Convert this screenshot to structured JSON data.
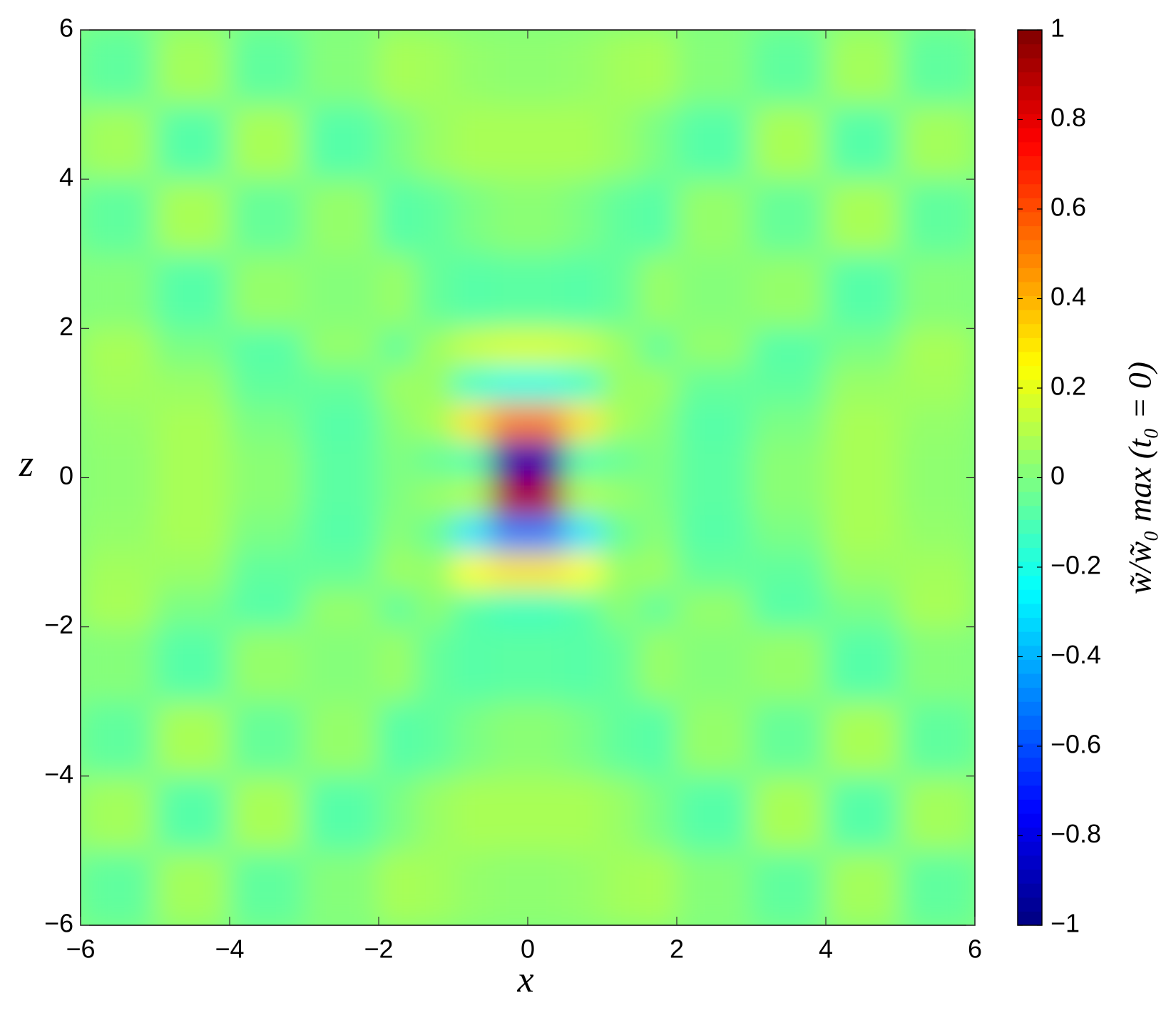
{
  "chart_data": {
    "type": "heatmap",
    "colormap": "jet",
    "x_label": "x",
    "y_label": "z",
    "colorbar_label": "w̃/w̃₀ max (t₀ = 0)",
    "xbins": [
      -6,
      -5,
      -4,
      -3,
      -2,
      -1.5,
      -1,
      -0.5,
      0,
      0.5,
      1,
      1.5,
      2,
      3,
      4,
      5,
      6
    ],
    "ybins": [
      -6,
      -5,
      -4,
      -3,
      -2,
      -1.5,
      -1,
      -0.5,
      0,
      0.5,
      1,
      1.5,
      2,
      3,
      4,
      5,
      6
    ],
    "values": [
      [
        -0.06,
        0.07,
        -0.06,
        0.01,
        0.08,
        0.07,
        0.04,
        0.03,
        0.03,
        0.04,
        0.07,
        0.08,
        0.01,
        -0.06,
        0.07,
        -0.06
      ],
      [
        0.07,
        -0.08,
        0.08,
        -0.08,
        -0.01,
        0.05,
        0.08,
        0.08,
        0.08,
        0.08,
        0.05,
        -0.01,
        -0.08,
        0.08,
        -0.08,
        0.07
      ],
      [
        -0.06,
        0.08,
        -0.05,
        0.04,
        -0.08,
        -0.06,
        -0.01,
        0.02,
        0.02,
        -0.01,
        -0.06,
        -0.08,
        0.04,
        -0.05,
        0.08,
        -0.06
      ],
      [
        0.01,
        -0.08,
        0.04,
        0.01,
        0.05,
        -0.05,
        -0.08,
        -0.07,
        -0.07,
        -0.08,
        -0.05,
        0.05,
        0.01,
        0.04,
        -0.08,
        0.01
      ],
      [
        0.08,
        -0.01,
        -0.08,
        0.04,
        -0.06,
        0.02,
        -0.08,
        -0.12,
        -0.12,
        -0.08,
        0.02,
        -0.06,
        0.04,
        -0.08,
        -0.01,
        0.08
      ],
      [
        0.07,
        0.05,
        -0.06,
        -0.05,
        0.06,
        0.05,
        0.25,
        0.3,
        0.3,
        0.25,
        0.05,
        0.06,
        -0.05,
        -0.06,
        0.05,
        0.07
      ],
      [
        0.04,
        0.08,
        -0.01,
        -0.08,
        0.02,
        -0.05,
        -0.3,
        -0.5,
        -0.5,
        -0.3,
        -0.05,
        0.02,
        -0.08,
        -0.01,
        0.08,
        0.04
      ],
      [
        0.03,
        0.08,
        0.02,
        -0.07,
        0,
        0.05,
        0.1,
        0.9,
        0.9,
        0.1,
        0.05,
        0,
        -0.07,
        0.02,
        0.08,
        0.03
      ],
      [
        0.03,
        0.08,
        0.02,
        -0.07,
        0,
        -0.05,
        -0.1,
        -0.9,
        -0.9,
        -0.1,
        -0.05,
        0,
        -0.07,
        0.02,
        0.08,
        0.03
      ],
      [
        0.04,
        0.08,
        -0.01,
        -0.08,
        0.02,
        0.08,
        0.3,
        0.5,
        0.5,
        0.3,
        0.08,
        0.02,
        -0.08,
        -0.01,
        0.08,
        0.04
      ],
      [
        0.07,
        0.05,
        -0.06,
        -0.05,
        0.06,
        0.05,
        -0.15,
        -0.2,
        -0.2,
        -0.15,
        0.05,
        0.06,
        -0.05,
        -0.06,
        0.05,
        0.07
      ],
      [
        0.08,
        -0.01,
        -0.08,
        0.04,
        -0.06,
        0.06,
        0.15,
        0.18,
        0.18,
        0.15,
        0.06,
        -0.06,
        0.04,
        -0.08,
        -0.01,
        0.08
      ],
      [
        0.01,
        -0.08,
        0.04,
        0.01,
        0.05,
        -0.05,
        -0.08,
        -0.07,
        -0.07,
        -0.08,
        -0.05,
        0.05,
        0.01,
        0.04,
        -0.08,
        0.01
      ],
      [
        -0.06,
        0.08,
        -0.05,
        0.04,
        -0.08,
        -0.06,
        -0.01,
        0.02,
        0.02,
        -0.01,
        -0.06,
        -0.08,
        0.04,
        -0.05,
        0.08,
        -0.06
      ],
      [
        0.07,
        -0.08,
        0.08,
        -0.08,
        -0.01,
        0.05,
        0.08,
        0.08,
        0.08,
        0.08,
        0.05,
        -0.01,
        -0.08,
        0.08,
        -0.08,
        0.07
      ],
      [
        -0.06,
        0.07,
        -0.06,
        0.01,
        0.08,
        0.07,
        0.04,
        0.03,
        0.03,
        0.04,
        0.07,
        0.08,
        0.01,
        -0.06,
        0.07,
        -0.06
      ]
    ],
    "xlim": [
      -6,
      6
    ],
    "ylim": [
      -6,
      6
    ],
    "clim": [
      -1,
      1
    ],
    "xticks": [
      {
        "value": -6,
        "label": "−6"
      },
      {
        "value": -4,
        "label": "−4"
      },
      {
        "value": -2,
        "label": "−2"
      },
      0,
      2,
      4,
      6
    ],
    "yticks": [
      {
        "value": -6,
        "label": "−6"
      },
      {
        "value": -4,
        "label": "−4"
      },
      {
        "value": -2,
        "label": "−2"
      },
      0,
      2,
      4,
      6
    ],
    "cticks": [
      {
        "value": -1,
        "label": "−1"
      },
      {
        "value": -0.8,
        "label": "−0.8"
      },
      {
        "value": -0.6,
        "label": "−0.6"
      },
      {
        "value": -0.4,
        "label": "−0.4"
      },
      {
        "value": -0.2,
        "label": "−0.2"
      },
      0,
      0.2,
      0.4,
      0.6,
      0.8,
      1
    ]
  }
}
